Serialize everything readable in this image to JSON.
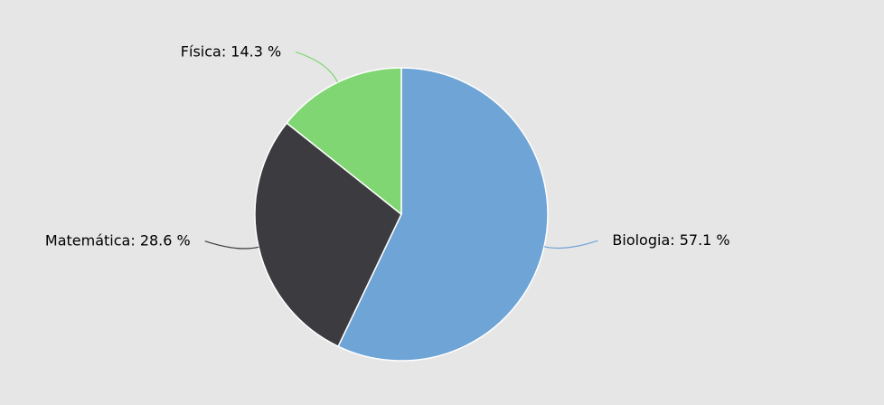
{
  "chart_data": {
    "type": "pie",
    "title": "",
    "start_angle_deg": 0,
    "direction": "clockwise",
    "slices": [
      {
        "label": "Biologia: 57.1 %",
        "name": "Biologia",
        "value": 57.1,
        "color": "#6fa4d6"
      },
      {
        "label": "Matemática: 28.6 %",
        "name": "Matemática",
        "value": 28.6,
        "color": "#3c3b3f"
      },
      {
        "label": "Física: 14.3 %",
        "name": "Física",
        "value": 14.3,
        "color": "#80d673"
      }
    ]
  }
}
